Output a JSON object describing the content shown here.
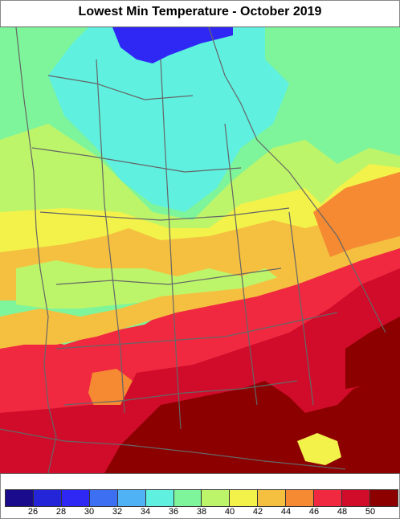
{
  "title": "Lowest Min Temperature - October 2019",
  "legend": {
    "colors": [
      "#1a0a8c",
      "#2424d8",
      "#2f28f5",
      "#3c6ff2",
      "#4fb2f5",
      "#5ff0e0",
      "#7ef59a",
      "#bdf56a",
      "#f2f24a",
      "#f5c040",
      "#f58a32",
      "#f02840",
      "#d00c2a",
      "#8c0000"
    ],
    "tick_labels": [
      "26",
      "28",
      "30",
      "32",
      "34",
      "36",
      "38",
      "40",
      "42",
      "44",
      "46",
      "48",
      "50"
    ]
  },
  "zones": {
    "cold_north": "#2f28f5",
    "teal": "#5ff0e0",
    "green": "#7ef59a",
    "light_green": "#bdf56a",
    "yellow": "#f2f24a",
    "orange": "#f5c040",
    "dark_orange": "#f58a32",
    "red": "#f02840",
    "crimson": "#d00c2a",
    "maroon": "#8c0000",
    "lines": "#666666"
  }
}
